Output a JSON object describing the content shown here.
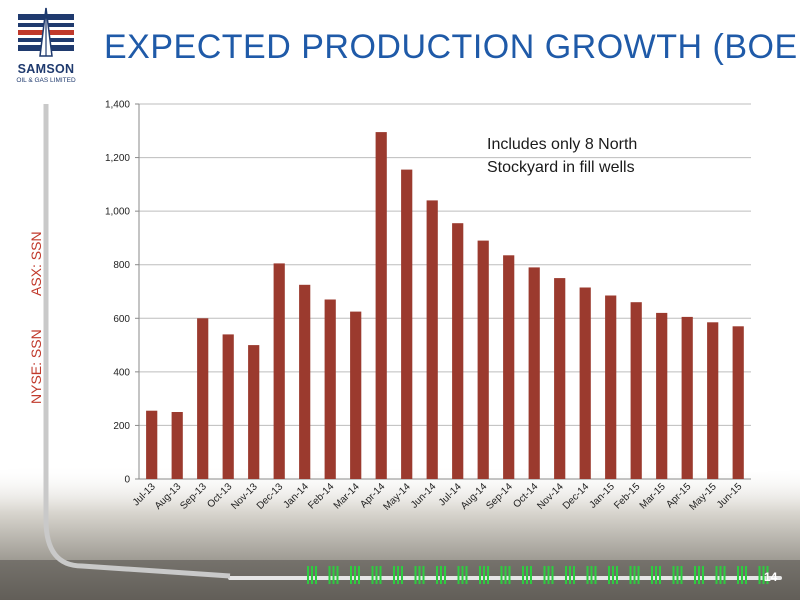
{
  "slide": {
    "title": "EXPECTED PRODUCTION GROWTH (BOEPD)",
    "page_number": "14",
    "side_labels": {
      "asx": "ASX: SSN",
      "nyse": "NYSE: SSN"
    },
    "logo": {
      "name": "SAMSON",
      "subtitle": "OIL & GAS LIMITED"
    },
    "colors": {
      "title": "#1f5aa8",
      "bar": "#9b3a2e",
      "side_text": "#c0392b",
      "logo": "#1f3a6e"
    }
  },
  "chart_data": {
    "type": "bar",
    "title": "",
    "xlabel": "",
    "ylabel": "",
    "ylim": [
      0,
      1400
    ],
    "yticks": [
      0,
      200,
      400,
      600,
      800,
      1000,
      1200,
      1400
    ],
    "ytick_labels": [
      "0",
      "200",
      "400",
      "600",
      "800",
      "1,000",
      "1,200",
      "1,400"
    ],
    "grid": true,
    "annotation": [
      "Includes only 8 North",
      "Stockyard in fill wells"
    ],
    "categories": [
      "Jul-13",
      "Aug-13",
      "Sep-13",
      "Oct-13",
      "Nov-13",
      "Dec-13",
      "Jan-14",
      "Feb-14",
      "Mar-14",
      "Apr-14",
      "May-14",
      "Jun-14",
      "Jul-14",
      "Aug-14",
      "Sep-14",
      "Oct-14",
      "Nov-14",
      "Dec-14",
      "Jan-15",
      "Feb-15",
      "Mar-15",
      "Apr-15",
      "May-15",
      "Jun-15"
    ],
    "values": [
      255,
      250,
      600,
      540,
      500,
      805,
      725,
      670,
      625,
      1295,
      1155,
      1040,
      955,
      890,
      835,
      790,
      750,
      715,
      685,
      660,
      620,
      605,
      585,
      570
    ]
  }
}
